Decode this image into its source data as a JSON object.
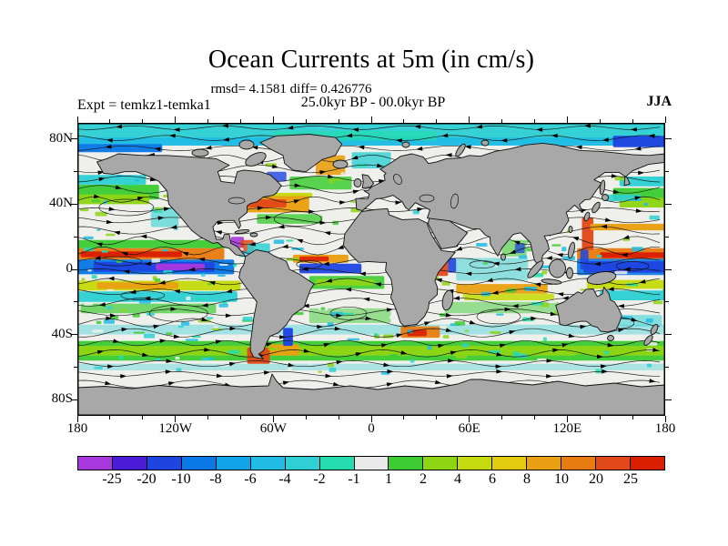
{
  "header": {
    "title": "Ocean Currents at 5m (in cm/s)",
    "stats_line": "rmsd= 4.1581 diff= 0.426776",
    "experiment_label": "Expt = temkz1-temka1",
    "period_label": "25.0kyr BP - 00.0kyr BP",
    "season_label": "JJA"
  },
  "chart_data": {
    "type": "heatmap",
    "title": "Ocean Currents at 5m (in cm/s)",
    "subtitle": "rmsd= 4.1581 diff= 0.426776",
    "rmsd": 4.1581,
    "diff": 0.426776,
    "annotations": {
      "experiment": "Expt = temkz1-temka1",
      "period": "25.0kyr BP - 00.0kyr BP",
      "season": "JJA"
    },
    "projection": "equirectangular",
    "lon_range": [
      -180,
      180
    ],
    "lat_range": [
      -90,
      90
    ],
    "units": "cm/s",
    "axes": {
      "lon_major_ticks": [
        -180,
        -120,
        -60,
        0,
        60,
        120,
        180
      ],
      "lon_major_labels": [
        "180",
        "120W",
        "60W",
        "0",
        "60E",
        "120E",
        "180"
      ],
      "lon_minor_step": 20,
      "lat_major_ticks": [
        80,
        40,
        0,
        -40,
        -80
      ],
      "lat_major_labels": [
        "80N",
        "40N",
        "0",
        "40S",
        "80S"
      ],
      "lat_minor_step": 20,
      "grid": false
    },
    "colorbar": {
      "position": "bottom",
      "levels": [
        -25,
        -20,
        -10,
        -8,
        -6,
        -4,
        -2,
        -1,
        1,
        2,
        4,
        6,
        8,
        10,
        20,
        25
      ],
      "level_labels": [
        "-25",
        "-20",
        "-10",
        "-8",
        "-6",
        "-4",
        "-2",
        "-1",
        "1",
        "2",
        "4",
        "6",
        "8",
        "10",
        "20",
        "25"
      ],
      "colors": [
        "#a638dd",
        "#4b1cd8",
        "#1e45e0",
        "#0a78e6",
        "#12a4e8",
        "#20bce4",
        "#2fd0d4",
        "#25dcae",
        "#e9e9e9",
        "#3ecc35",
        "#8ed514",
        "#c6da10",
        "#e3cb10",
        "#e9a012",
        "#e87c12",
        "#e2491a",
        "#da1f00"
      ]
    },
    "map_colors": {
      "land": "#a8a8a8",
      "coastline": "#101010",
      "ocean": "#efefeb"
    },
    "features": [
      {
        "name": "arctic-cyan-band",
        "lon": [
          -180,
          180
        ],
        "lat": [
          90,
          78
        ],
        "color": "#2fd0d4"
      },
      {
        "name": "arctic-azure-band",
        "lon": [
          -180,
          180
        ],
        "lat": [
          81,
          76
        ],
        "color": "#20bce4"
      },
      {
        "name": "arctic-teal-mid",
        "lon": [
          -60,
          40
        ],
        "lat": [
          85,
          79
        ],
        "color": "#25dcae",
        "op": 0.7
      },
      {
        "name": "arctic-blue-east",
        "lon": [
          148,
          180
        ],
        "lat": [
          82,
          75
        ],
        "color": "#1e45e0"
      },
      {
        "name": "arctic-blue-west",
        "lon": [
          -180,
          -128
        ],
        "lat": [
          77,
          72
        ],
        "color": "#0a78e6"
      },
      {
        "name": "npac-cyan-west",
        "lon": [
          -180,
          -138
        ],
        "lat": [
          58,
          52
        ],
        "color": "#2fd0d4"
      },
      {
        "name": "npac-cyan-east",
        "lon": [
          152,
          180
        ],
        "lat": [
          57,
          51
        ],
        "color": "#2fd0d4"
      },
      {
        "name": "npac-green-band",
        "lon": [
          -180,
          -130
        ],
        "lat": [
          52,
          43
        ],
        "color": "#3ecc35"
      },
      {
        "name": "npac-yellowgreen-band",
        "lon": [
          -180,
          -136
        ],
        "lat": [
          46,
          40
        ],
        "color": "#8ed514"
      },
      {
        "name": "npac-green-band-w",
        "lon": [
          148,
          180
        ],
        "lat": [
          50,
          42
        ],
        "color": "#3ecc35"
      },
      {
        "name": "npac-yellowgreen-band-w",
        "lon": [
          152,
          180
        ],
        "lat": [
          44,
          38
        ],
        "color": "#8ed514"
      },
      {
        "name": "california-cyan",
        "lon": [
          -135,
          -118
        ],
        "lat": [
          38,
          26
        ],
        "color": "#2fd0d4",
        "op": 0.6
      },
      {
        "name": "pac-neq-green-band",
        "lon": [
          -180,
          -86
        ],
        "lat": [
          18,
          13
        ],
        "color": "#3ecc35"
      },
      {
        "name": "pac-neq-orange-band",
        "lon": [
          -180,
          -90
        ],
        "lat": [
          13,
          6
        ],
        "color": "#e87c12"
      },
      {
        "name": "pac-neq-red-core",
        "lon": [
          -178,
          -116
        ],
        "lat": [
          11,
          7.5
        ],
        "color": "#da1f00"
      },
      {
        "name": "pac-eq-azure-band",
        "lon": [
          -180,
          -84
        ],
        "lat": [
          6,
          -3
        ],
        "color": "#0a78e6"
      },
      {
        "name": "pac-eq-blue-core",
        "lon": [
          -170,
          -96
        ],
        "lat": [
          4.5,
          -1.5
        ],
        "color": "#1e45e0"
      },
      {
        "name": "pac-eq-purple-core",
        "lon": [
          -132,
          -102
        ],
        "lat": [
          3.5,
          -0.5
        ],
        "color": "#a638dd"
      },
      {
        "name": "pac-seq-yellow-band",
        "lon": [
          -180,
          -80
        ],
        "lat": [
          -7,
          -13
        ],
        "color": "#c6da10"
      },
      {
        "name": "pac-seq-orange-core",
        "lon": [
          -168,
          -118
        ],
        "lat": [
          -8,
          -12
        ],
        "color": "#e9a012"
      },
      {
        "name": "pac-seq-cyan-band",
        "lon": [
          -180,
          -82
        ],
        "lat": [
          -13.5,
          -20
        ],
        "color": "#2fd0d4"
      },
      {
        "name": "pac-s-green-band",
        "lon": [
          -178,
          -95
        ],
        "lat": [
          -21,
          -27
        ],
        "color": "#3ecc35",
        "op": 0.7
      },
      {
        "name": "wpac-orange-band",
        "lon": [
          126,
          180
        ],
        "lat": [
          13,
          6
        ],
        "color": "#e87c12"
      },
      {
        "name": "wpac-red-core",
        "lon": [
          140,
          180
        ],
        "lat": [
          10.5,
          7
        ],
        "color": "#da1f00"
      },
      {
        "name": "wpac-azure-edge",
        "lon": [
          126,
          180
        ],
        "lat": [
          6.5,
          -3.5
        ],
        "color": "#0a78e6",
        "op": 0.9
      },
      {
        "name": "wpac-blue-band",
        "lon": [
          130,
          180
        ],
        "lat": [
          5,
          -2
        ],
        "color": "#1e45e0"
      },
      {
        "name": "wpac-yellow-band",
        "lon": [
          132,
          180
        ],
        "lat": [
          -6.5,
          -12
        ],
        "color": "#c6da10"
      },
      {
        "name": "wpac-cyan-band",
        "lon": [
          140,
          180
        ],
        "lat": [
          -13,
          -19
        ],
        "color": "#2fd0d4"
      },
      {
        "name": "kuroshio-red-streak",
        "lon": [
          129,
          136
        ],
        "lat": [
          32,
          12
        ],
        "color": "#e2491a"
      },
      {
        "name": "kuroshio-orange-ext",
        "lon": [
          134,
          180
        ],
        "lat": [
          28,
          24
        ],
        "color": "#e9a012"
      },
      {
        "name": "philippines-blue-streak",
        "lon": [
          128,
          133
        ],
        "lat": [
          12,
          0
        ],
        "color": "#1e45e0",
        "op": 0.85
      },
      {
        "name": "gulfstream-yellow-edge",
        "lon": [
          -72,
          -36
        ],
        "lat": [
          47,
          44
        ],
        "color": "#c6da10"
      },
      {
        "name": "gulfstream-orange-halo",
        "lon": [
          -80,
          -38
        ],
        "lat": [
          45,
          35
        ],
        "color": "#e9a012"
      },
      {
        "name": "gulfstream-red-core",
        "lon": [
          -76,
          -52
        ],
        "lat": [
          43,
          38
        ],
        "color": "#e2491a"
      },
      {
        "name": "natl-green-north",
        "lon": [
          -50,
          -12
        ],
        "lat": [
          57,
          49
        ],
        "color": "#3ecc35",
        "op": 0.85
      },
      {
        "name": "natl-green-south",
        "lon": [
          -70,
          -30
        ],
        "lat": [
          34,
          28
        ],
        "color": "#3ecc35",
        "op": 0.8
      },
      {
        "name": "greenland-orange-current",
        "lon": [
          -34,
          -16
        ],
        "lat": [
          70,
          58
        ],
        "color": "#e9a012",
        "op": 0.9
      },
      {
        "name": "nordic-cyan",
        "lon": [
          -12,
          12
        ],
        "lat": [
          72,
          62
        ],
        "color": "#2fd0d4",
        "op": 0.8
      },
      {
        "name": "labrador-blue",
        "lon": [
          -64,
          -52
        ],
        "lat": [
          60,
          54
        ],
        "color": "#1e45e0",
        "op": 0.8
      },
      {
        "name": "caribbean-purple",
        "lon": [
          -86,
          -78
        ],
        "lat": [
          20,
          12
        ],
        "color": "#a638dd",
        "op": 0.9
      },
      {
        "name": "caribbean-red",
        "lon": [
          -80,
          -72
        ],
        "lat": [
          18,
          10
        ],
        "color": "#e2491a",
        "op": 0.85
      },
      {
        "name": "caribbean-cyan",
        "lon": [
          -76,
          -62
        ],
        "lat": [
          16,
          10
        ],
        "color": "#2fd0d4",
        "op": 0.85
      },
      {
        "name": "atl-neq-orange-band",
        "lon": [
          -48,
          -14
        ],
        "lat": [
          9,
          4
        ],
        "color": "#e9a012"
      },
      {
        "name": "atl-neq-red-core",
        "lon": [
          -44,
          -26
        ],
        "lat": [
          8,
          5
        ],
        "color": "#da1f00",
        "op": 0.9
      },
      {
        "name": "atl-eq-blue-band",
        "lon": [
          -44,
          -6
        ],
        "lat": [
          3.5,
          -2.5
        ],
        "color": "#1e45e0",
        "op": 0.95
      },
      {
        "name": "atl-seq-green-band",
        "lon": [
          -38,
          8
        ],
        "lat": [
          -4,
          -12
        ],
        "color": "#3ecc35",
        "op": 0.9
      },
      {
        "name": "atl-seq-yellowgreen",
        "lon": [
          -34,
          2
        ],
        "lat": [
          -6,
          -10
        ],
        "color": "#8ed514",
        "op": 0.9
      },
      {
        "name": "satl-green",
        "lon": [
          -38,
          12
        ],
        "lat": [
          -24,
          -33
        ],
        "color": "#3ecc35",
        "op": 0.5
      },
      {
        "name": "somali-red-streak",
        "lon": [
          40,
          47
        ],
        "lat": [
          9,
          -4
        ],
        "color": "#e2491a",
        "op": 0.95
      },
      {
        "name": "somali-blue-streak",
        "lon": [
          47,
          52
        ],
        "lat": [
          7,
          -2
        ],
        "color": "#1e45e0",
        "op": 0.9
      },
      {
        "name": "ind-eq-cyan",
        "lon": [
          52,
          96
        ],
        "lat": [
          7,
          -7
        ],
        "color": "#2fd0d4",
        "op": 0.5
      },
      {
        "name": "bengal-green",
        "lon": [
          80,
          95
        ],
        "lat": [
          18,
          8
        ],
        "color": "#3ecc35",
        "op": 0.6
      },
      {
        "name": "bengal-blue-patch",
        "lon": [
          88,
          94
        ],
        "lat": [
          16,
          10
        ],
        "color": "#1e45e0",
        "op": 0.75
      },
      {
        "name": "ind-seq-orange-band",
        "lon": [
          52,
          108
        ],
        "lat": [
          -9,
          -15
        ],
        "color": "#e9a012",
        "op": 0.95
      },
      {
        "name": "ind-seq-yellow-band",
        "lon": [
          56,
          112
        ],
        "lat": [
          -15,
          -19
        ],
        "color": "#c6da10",
        "op": 0.9
      },
      {
        "name": "sind-green",
        "lon": [
          45,
          115
        ],
        "lat": [
          -20,
          -27
        ],
        "color": "#3ecc35",
        "op": 0.5
      },
      {
        "name": "acc-cyan-north",
        "lon": [
          -180,
          180
        ],
        "lat": [
          -34,
          -40
        ],
        "color": "#2fd0d4",
        "op": 0.4
      },
      {
        "name": "acc-green-band",
        "lon": [
          -180,
          180
        ],
        "lat": [
          -44,
          -56
        ],
        "color": "#3ecc35"
      },
      {
        "name": "acc-yellowgreen-core",
        "lon": [
          -180,
          180
        ],
        "lat": [
          -47,
          -53
        ],
        "color": "#8ed514"
      },
      {
        "name": "so-cyan-speckle",
        "lon": [
          -180,
          180
        ],
        "lat": [
          -58,
          -62
        ],
        "color": "#2fd0d4",
        "op": 0.35
      },
      {
        "name": "drake-red-patch",
        "lon": [
          -76,
          -62
        ],
        "lat": [
          -48,
          -58
        ],
        "color": "#e2491a"
      },
      {
        "name": "drake-orange-tail",
        "lon": [
          -62,
          -44
        ],
        "lat": [
          -46,
          -53
        ],
        "color": "#e9a012",
        "op": 0.95
      },
      {
        "name": "argentine-blue-patch",
        "lon": [
          -54,
          -48
        ],
        "lat": [
          -36,
          -47
        ],
        "color": "#1e45e0"
      },
      {
        "name": "agulhas-orange",
        "lon": [
          18,
          42
        ],
        "lat": [
          -35,
          -42
        ],
        "color": "#e87c12",
        "op": 0.95
      },
      {
        "name": "agulhas-red-core",
        "lon": [
          22,
          34
        ],
        "lat": [
          -37,
          -41
        ],
        "color": "#da1f00",
        "op": 0.9
      },
      {
        "name": "tasman-cyan",
        "lon": [
          140,
          178
        ],
        "lat": [
          -28,
          -35
        ],
        "color": "#2fd0d4",
        "op": 0.55
      },
      {
        "name": "oyashio-cyan",
        "lon": [
          142,
          165
        ],
        "lat": [
          46,
          42
        ],
        "color": "#2fd0d4",
        "op": 0.9
      }
    ]
  }
}
